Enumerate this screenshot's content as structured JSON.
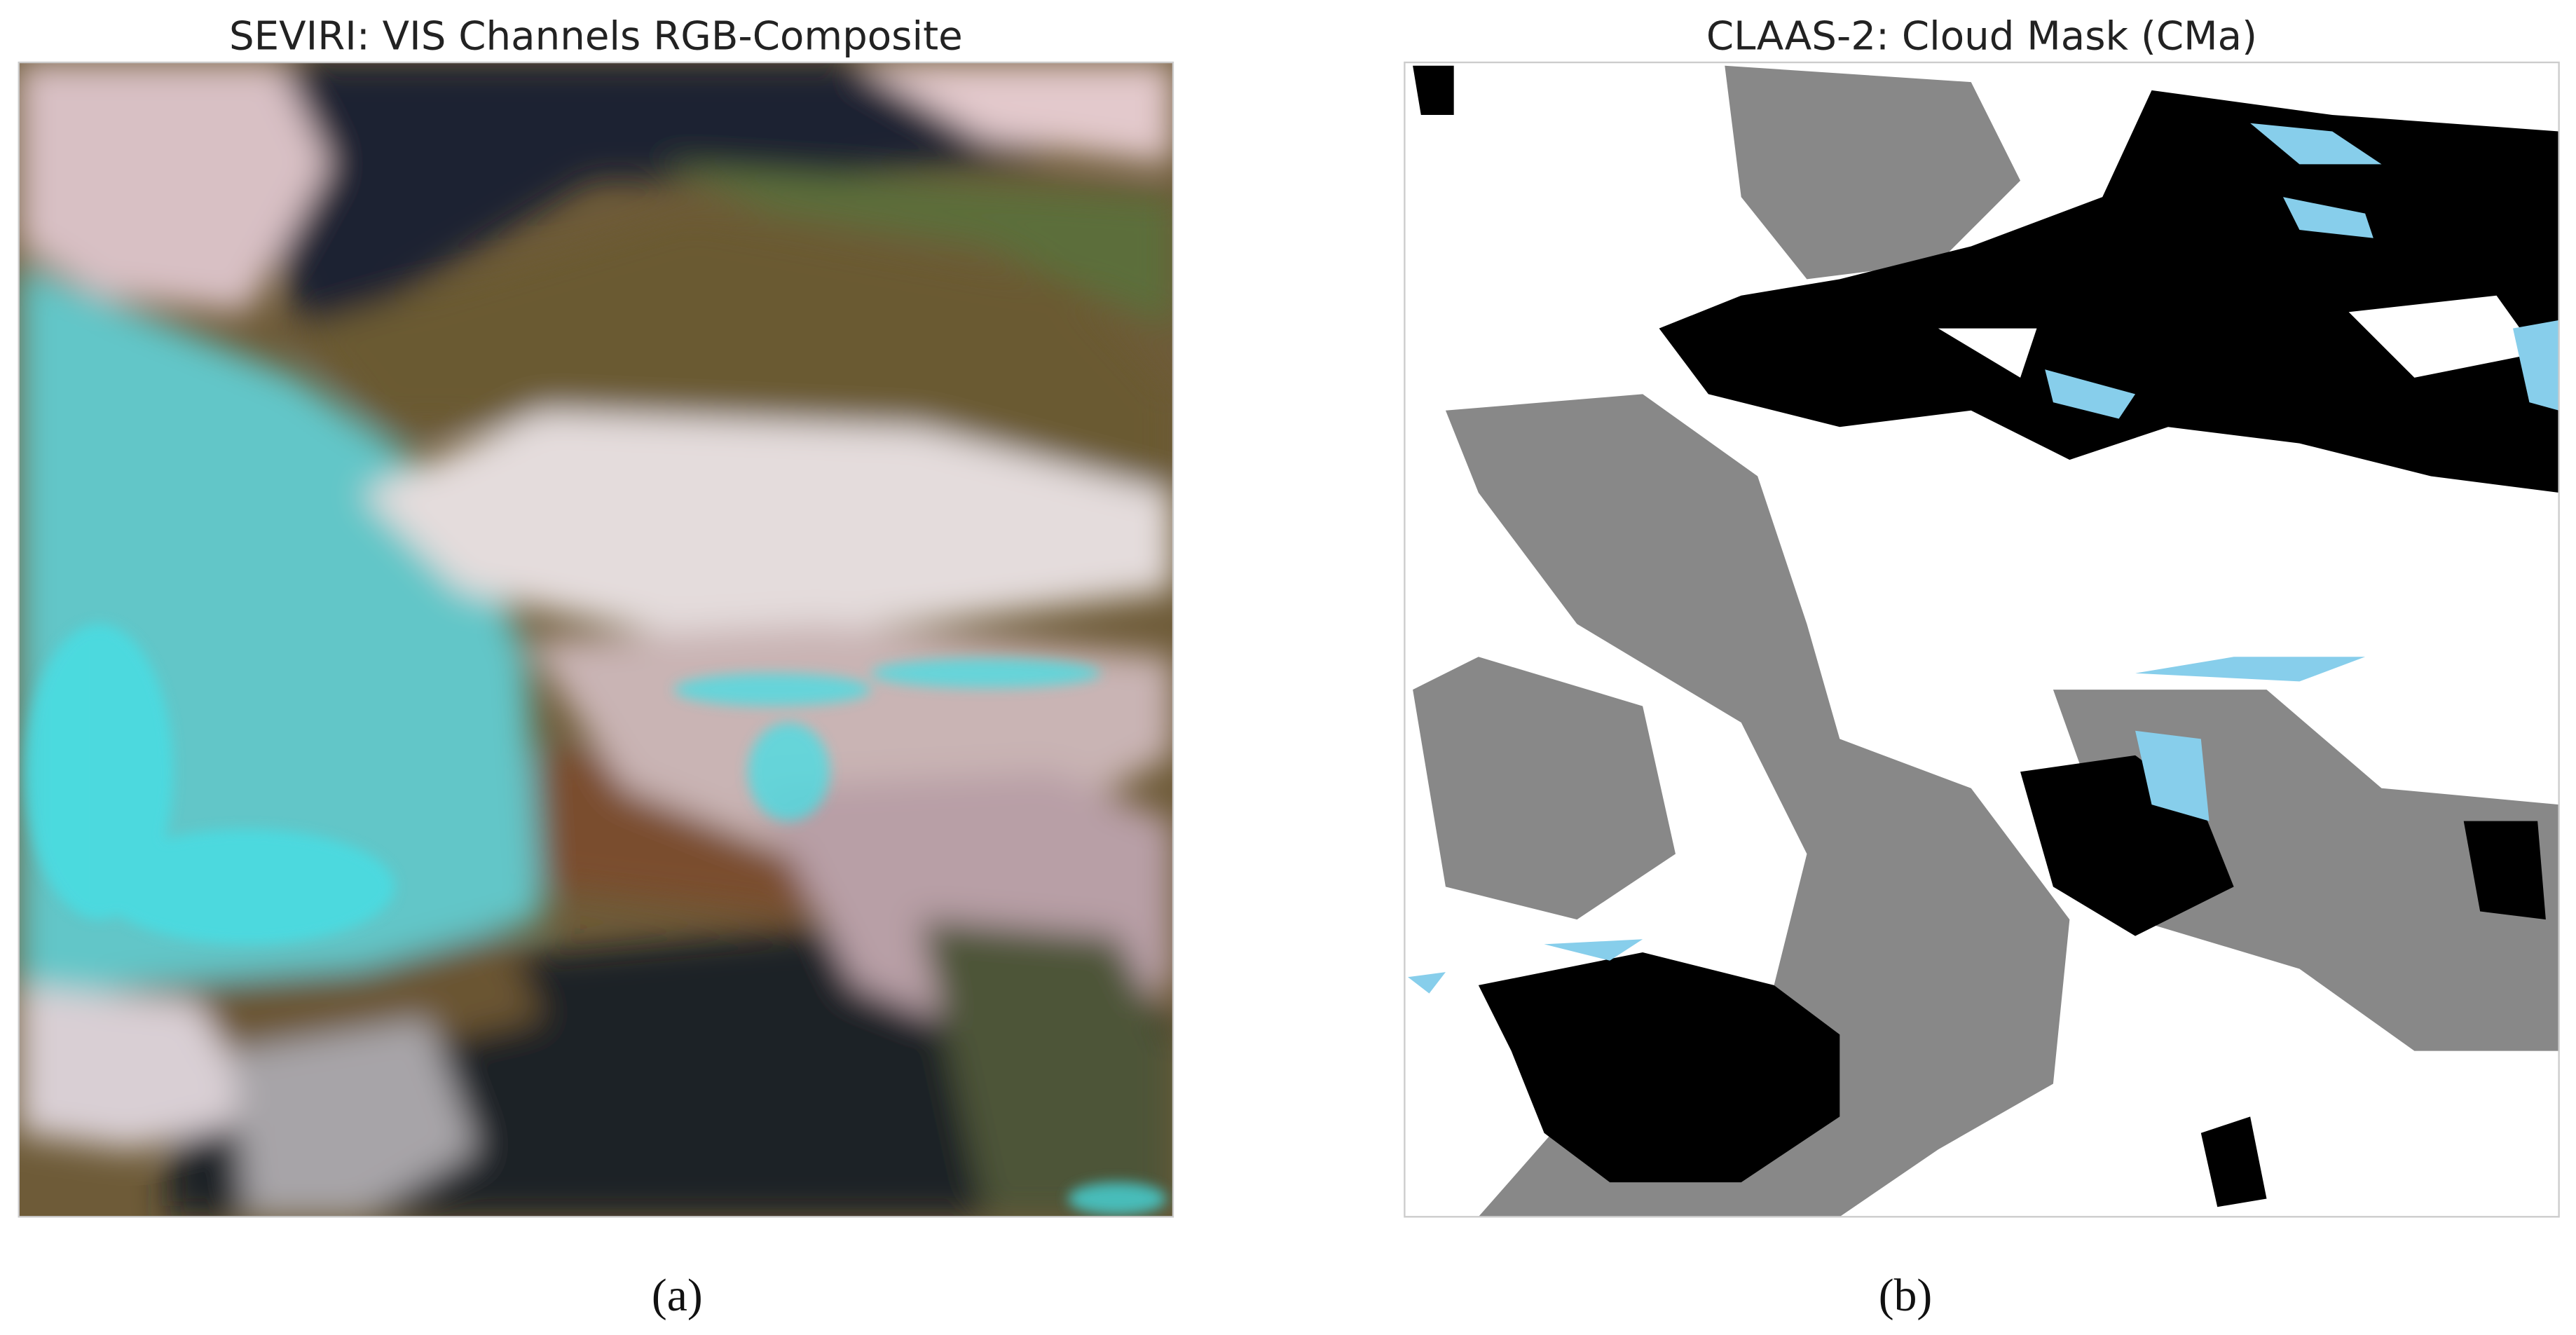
{
  "panels": [
    {
      "title": "SEVIRI: VIS Channels RGB-Composite",
      "caption": "(a)"
    },
    {
      "title": "CLAAS-2: Cloud Mask (CMa)",
      "caption": "(b)"
    }
  ]
}
